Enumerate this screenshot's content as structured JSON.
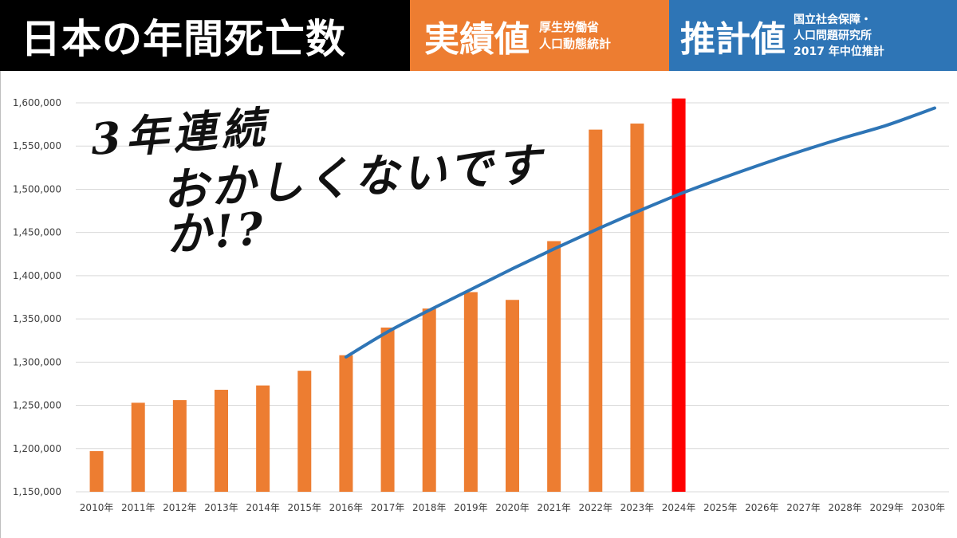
{
  "header": {
    "title": "日本の年間死亡数",
    "actual_label": "実績値",
    "actual_source_lines": [
      "厚生労働省",
      "人口動態統計"
    ],
    "projection_label": "推計値",
    "projection_source_lines": [
      "国立社会保障・",
      "人口問題研究所",
      "2017 年中位推計"
    ]
  },
  "callout": {
    "line1": "3年連続",
    "line2": "おかしくないですか!?"
  },
  "colors": {
    "actual_bar": "#ed7d31",
    "highlight_bar": "#ff0000",
    "projection_line": "#2e75b6",
    "header_black": "#000000",
    "header_orange": "#ed7d31",
    "header_blue": "#2e75b6"
  },
  "chart_data": {
    "type": "bar",
    "categories": [
      "2010年",
      "2011年",
      "2012年",
      "2013年",
      "2014年",
      "2015年",
      "2016年",
      "2017年",
      "2018年",
      "2019年",
      "2020年",
      "2021年",
      "2022年",
      "2023年",
      "2024年",
      "2025年",
      "2026年",
      "2027年",
      "2028年",
      "2029年",
      "2030年"
    ],
    "series": [
      {
        "name": "実績値",
        "type": "bar",
        "color": "#ed7d31",
        "values": [
          1197000,
          1253000,
          1256000,
          1268000,
          1273000,
          1290000,
          1308000,
          1340000,
          1362000,
          1381000,
          1372000,
          1440000,
          1569000,
          1576000,
          1605000,
          null,
          null,
          null,
          null,
          null,
          null
        ],
        "highlight_index": 14,
        "highlight_color": "#ff0000"
      },
      {
        "name": "推計値",
        "type": "line",
        "color": "#2e75b6",
        "values": [
          null,
          null,
          null,
          null,
          null,
          null,
          1306000,
          1335000,
          1360000,
          1384000,
          1408000,
          1431000,
          1453000,
          1474000,
          1494000,
          1512000,
          1529000,
          1545000,
          1560000,
          1574000,
          1594000
        ]
      }
    ],
    "ylim": [
      1150000,
      1600000
    ],
    "yticks": [
      "1,150,000",
      "1,200,000",
      "1,250,000",
      "1,300,000",
      "1,350,000",
      "1,400,000",
      "1,450,000",
      "1,500,000",
      "1,550,000",
      "1,600,000"
    ],
    "ytick_values": [
      1150000,
      1200000,
      1250000,
      1300000,
      1350000,
      1400000,
      1450000,
      1500000,
      1550000,
      1600000
    ],
    "xlabel": "",
    "ylabel": "",
    "grid": true
  }
}
